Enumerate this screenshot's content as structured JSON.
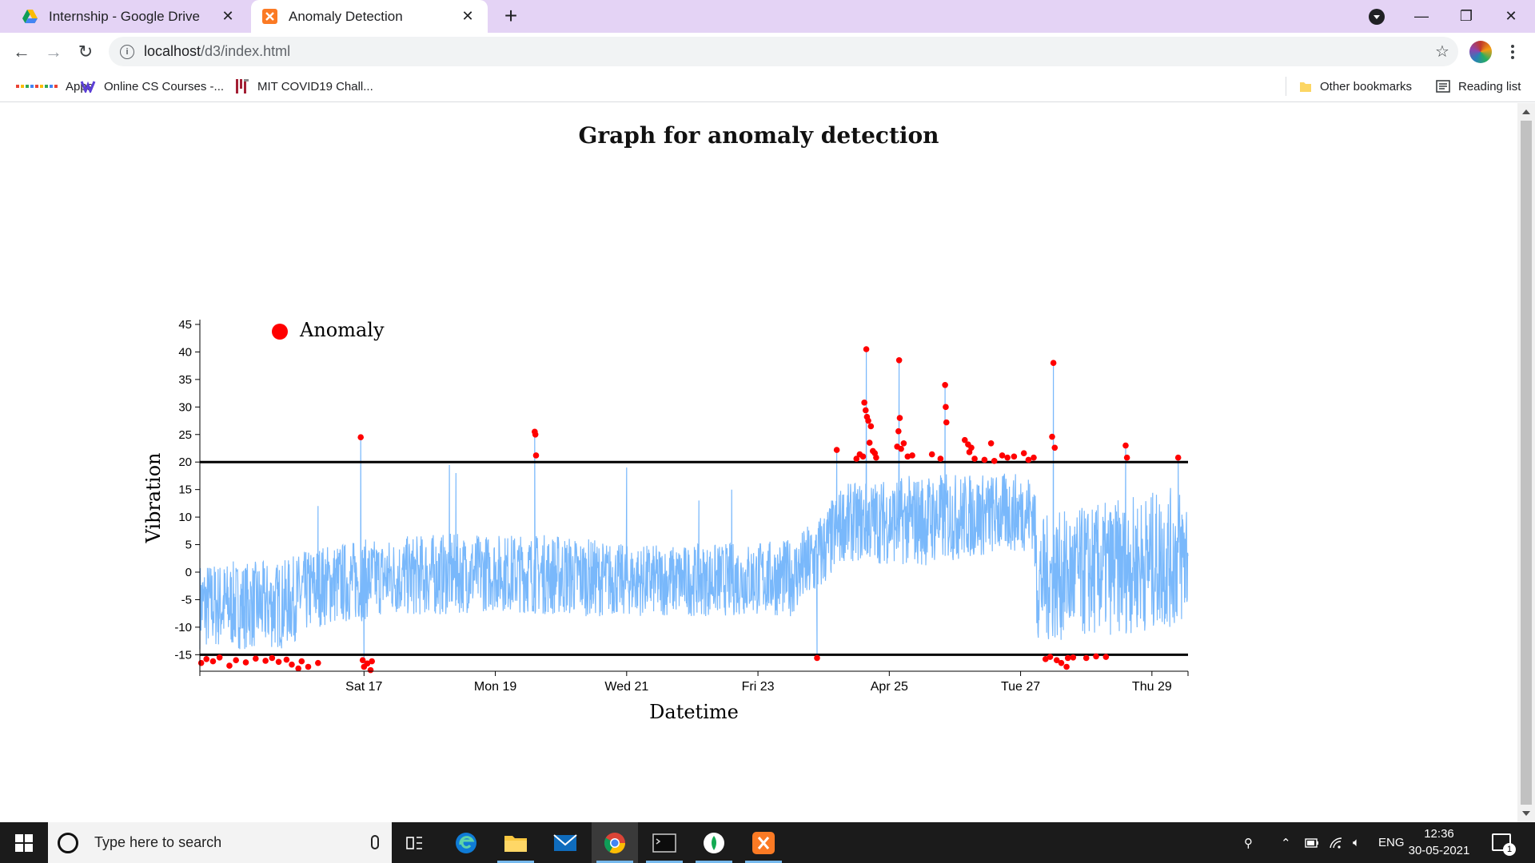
{
  "browser": {
    "tabs": [
      {
        "title": "Internship - Google Drive",
        "active": false
      },
      {
        "title": "Anomaly Detection",
        "active": true
      }
    ],
    "new_tab": "+",
    "url_host": "localhost",
    "url_path": "/d3/index.html",
    "bookmarks": [
      {
        "label": "Apps"
      },
      {
        "label": "Online CS Courses -..."
      },
      {
        "label": "MIT COVID19 Chall..."
      },
      {
        "label": "Other bookmarks"
      },
      {
        "label": "Reading list"
      }
    ]
  },
  "page": {
    "title": "Graph for anomaly detection"
  },
  "chart_data": {
    "type": "line",
    "title": "Graph for anomaly detection",
    "xlabel": "Datetime",
    "ylabel": "Vibration",
    "ylim": [
      -18,
      45
    ],
    "yticks": [
      45,
      40,
      35,
      30,
      25,
      20,
      15,
      10,
      5,
      0,
      -5,
      -10,
      -15
    ],
    "x_range_days": [
      14.5,
      29.55
    ],
    "xticks": [
      {
        "day": 17,
        "label": "Sat 17"
      },
      {
        "day": 19,
        "label": "Mon 19"
      },
      {
        "day": 21,
        "label": "Wed 21"
      },
      {
        "day": 23,
        "label": "Fri 23"
      },
      {
        "day": 25,
        "label": "Apr 25"
      },
      {
        "day": 27,
        "label": "Tue 27"
      },
      {
        "day": 29,
        "label": "Thu 29"
      }
    ],
    "thresholds": [
      20,
      -15
    ],
    "legend": {
      "label": "Anomaly",
      "position": "top-left",
      "color": "#ff0000"
    },
    "series_color": "#79b8fb",
    "threshold_color": "#000000",
    "series_envelope": [
      {
        "day": 14.5,
        "low": -14,
        "high": 2
      },
      {
        "day": 15.75,
        "low": -14,
        "high": 2
      },
      {
        "day": 16.3,
        "low": -10,
        "high": 5
      },
      {
        "day": 16.95,
        "low": -9,
        "high": 6
      },
      {
        "day": 17.2,
        "low": -8,
        "high": 6
      },
      {
        "day": 18.0,
        "low": -8,
        "high": 7
      },
      {
        "day": 19.0,
        "low": -7,
        "high": 7
      },
      {
        "day": 20.0,
        "low": -8,
        "high": 7
      },
      {
        "day": 21.0,
        "low": -8,
        "high": 5
      },
      {
        "day": 22.0,
        "low": -8,
        "high": 5
      },
      {
        "day": 23.5,
        "low": -8,
        "high": 6
      },
      {
        "day": 23.9,
        "low": -5,
        "high": 10
      },
      {
        "day": 24.3,
        "low": 2,
        "high": 16
      },
      {
        "day": 25.5,
        "low": 1,
        "high": 18
      },
      {
        "day": 26.5,
        "low": 3,
        "high": 18
      },
      {
        "day": 27.2,
        "low": 4,
        "high": 18
      },
      {
        "day": 27.25,
        "low": -13,
        "high": 10
      },
      {
        "day": 28.0,
        "low": -12,
        "high": 12
      },
      {
        "day": 29.55,
        "low": -10,
        "high": 16
      }
    ],
    "spikes": [
      {
        "day": 16.3,
        "value": 12
      },
      {
        "day": 16.95,
        "value": 24.5
      },
      {
        "day": 17.0,
        "value": -17
      },
      {
        "day": 18.3,
        "value": 19.5
      },
      {
        "day": 18.4,
        "value": 18
      },
      {
        "day": 19.6,
        "value": 25.5
      },
      {
        "day": 21.0,
        "value": 19
      },
      {
        "day": 22.1,
        "value": 13
      },
      {
        "day": 22.6,
        "value": 15
      },
      {
        "day": 23.9,
        "value": -16
      },
      {
        "day": 24.2,
        "value": 22
      },
      {
        "day": 24.65,
        "value": 40.5
      },
      {
        "day": 25.15,
        "value": 38.5
      },
      {
        "day": 25.85,
        "value": 34
      },
      {
        "day": 27.5,
        "value": 38
      },
      {
        "day": 28.6,
        "value": 23
      },
      {
        "day": 29.4,
        "value": 21
      }
    ],
    "anomalies": [
      [
        14.52,
        -16.5
      ],
      [
        14.6,
        -15.8
      ],
      [
        14.7,
        -16.2
      ],
      [
        14.8,
        -15.5
      ],
      [
        14.95,
        -17.0
      ],
      [
        15.05,
        -16.0
      ],
      [
        15.2,
        -16.4
      ],
      [
        15.35,
        -15.7
      ],
      [
        15.5,
        -16.1
      ],
      [
        15.6,
        -15.6
      ],
      [
        15.7,
        -16.3
      ],
      [
        15.82,
        -15.9
      ],
      [
        15.9,
        -16.8
      ],
      [
        16.0,
        -17.5
      ],
      [
        16.05,
        -16.2
      ],
      [
        16.15,
        -17.2
      ],
      [
        16.3,
        -16.5
      ],
      [
        16.95,
        24.5
      ],
      [
        16.98,
        -16.0
      ],
      [
        17.0,
        -17.2
      ],
      [
        17.05,
        -16.6
      ],
      [
        17.1,
        -17.8
      ],
      [
        17.12,
        -16.2
      ],
      [
        19.6,
        25.5
      ],
      [
        19.61,
        25.0
      ],
      [
        19.62,
        21.2
      ],
      [
        23.9,
        -15.6
      ],
      [
        24.2,
        22.2
      ],
      [
        24.5,
        20.6
      ],
      [
        24.55,
        21.4
      ],
      [
        24.6,
        21.0
      ],
      [
        24.62,
        30.8
      ],
      [
        24.64,
        29.4
      ],
      [
        24.65,
        40.5
      ],
      [
        24.66,
        28.2
      ],
      [
        24.68,
        27.5
      ],
      [
        24.7,
        23.5
      ],
      [
        24.72,
        26.5
      ],
      [
        24.75,
        22.0
      ],
      [
        24.78,
        21.6
      ],
      [
        24.8,
        20.8
      ],
      [
        25.12,
        22.8
      ],
      [
        25.14,
        25.6
      ],
      [
        25.15,
        38.5
      ],
      [
        25.16,
        28.0
      ],
      [
        25.18,
        22.4
      ],
      [
        25.22,
        23.4
      ],
      [
        25.28,
        21.0
      ],
      [
        25.35,
        21.2
      ],
      [
        25.65,
        21.4
      ],
      [
        25.78,
        20.6
      ],
      [
        25.85,
        34.0
      ],
      [
        25.86,
        30.0
      ],
      [
        25.87,
        27.2
      ],
      [
        26.15,
        24.0
      ],
      [
        26.2,
        23.2
      ],
      [
        26.22,
        21.8
      ],
      [
        26.25,
        22.6
      ],
      [
        26.3,
        20.6
      ],
      [
        26.45,
        20.4
      ],
      [
        26.55,
        23.4
      ],
      [
        26.6,
        20.2
      ],
      [
        26.72,
        21.2
      ],
      [
        26.8,
        20.8
      ],
      [
        26.9,
        21.0
      ],
      [
        27.05,
        21.6
      ],
      [
        27.12,
        20.4
      ],
      [
        27.2,
        20.8
      ],
      [
        27.38,
        -15.8
      ],
      [
        27.45,
        -15.4
      ],
      [
        27.48,
        24.6
      ],
      [
        27.5,
        38.0
      ],
      [
        27.52,
        22.6
      ],
      [
        27.55,
        -16.0
      ],
      [
        27.62,
        -16.5
      ],
      [
        27.7,
        -17.2
      ],
      [
        27.72,
        -15.6
      ],
      [
        27.8,
        -15.5
      ],
      [
        28.0,
        -15.6
      ],
      [
        28.15,
        -15.3
      ],
      [
        28.3,
        -15.4
      ],
      [
        28.6,
        23.0
      ],
      [
        28.62,
        20.8
      ],
      [
        29.4,
        20.8
      ]
    ]
  },
  "taskbar": {
    "search_placeholder": "Type here to search",
    "language": "ENG",
    "time": "12:36",
    "date": "30-05-2021",
    "notifications": "1"
  }
}
